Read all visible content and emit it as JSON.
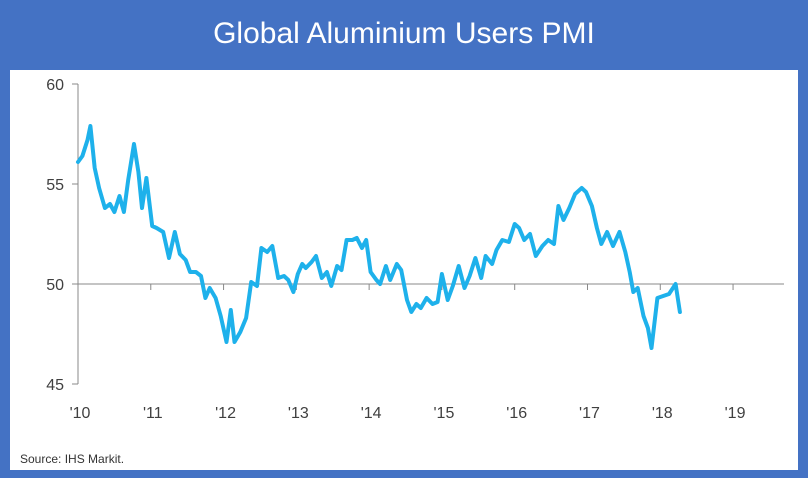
{
  "title": "Global Aluminium Users PMI",
  "source": "Source: IHS Markit.",
  "colors": {
    "line": "#1eb1eb",
    "frame": "#4472c4",
    "axis": "#888888"
  },
  "chart_data": {
    "type": "line",
    "title": "Global Aluminium Users PMI",
    "xlabel": "",
    "ylabel": "",
    "ylim": [
      45,
      60
    ],
    "xlim": [
      2010.0,
      2019.7
    ],
    "y_ticks": [
      45,
      50,
      55,
      60
    ],
    "x_ticks": [
      {
        "label": "'10",
        "value": 2010
      },
      {
        "label": "'11",
        "value": 2011
      },
      {
        "label": "'12",
        "value": 2012
      },
      {
        "label": "'13",
        "value": 2013
      },
      {
        "label": "'14",
        "value": 2014
      },
      {
        "label": "'15",
        "value": 2015
      },
      {
        "label": "'16",
        "value": 2016
      },
      {
        "label": "'17",
        "value": 2017
      },
      {
        "label": "'18",
        "value": 2018
      },
      {
        "label": "'19",
        "value": 2019
      }
    ],
    "reference_line": 50,
    "series": [
      {
        "values": [
          [
            2010.0,
            56.1
          ],
          [
            2010.06,
            56.4
          ],
          [
            2010.13,
            57.2
          ],
          [
            2010.17,
            57.9
          ],
          [
            2010.23,
            55.8
          ],
          [
            2010.29,
            54.8
          ],
          [
            2010.37,
            53.8
          ],
          [
            2010.44,
            54.0
          ],
          [
            2010.5,
            53.6
          ],
          [
            2010.57,
            54.4
          ],
          [
            2010.63,
            53.6
          ],
          [
            2010.69,
            55.2
          ],
          [
            2010.77,
            57.0
          ],
          [
            2010.83,
            55.6
          ],
          [
            2010.88,
            53.8
          ],
          [
            2010.94,
            55.3
          ],
          [
            2011.02,
            52.9
          ],
          [
            2011.08,
            52.8
          ],
          [
            2011.17,
            52.6
          ],
          [
            2011.25,
            51.3
          ],
          [
            2011.33,
            52.6
          ],
          [
            2011.4,
            51.5
          ],
          [
            2011.48,
            51.2
          ],
          [
            2011.54,
            50.6
          ],
          [
            2011.62,
            50.6
          ],
          [
            2011.69,
            50.4
          ],
          [
            2011.75,
            49.3
          ],
          [
            2011.81,
            49.8
          ],
          [
            2011.89,
            49.3
          ],
          [
            2011.96,
            48.4
          ],
          [
            2012.04,
            47.1
          ],
          [
            2012.1,
            48.7
          ],
          [
            2012.15,
            47.1
          ],
          [
            2012.23,
            47.6
          ],
          [
            2012.31,
            48.3
          ],
          [
            2012.38,
            50.1
          ],
          [
            2012.46,
            49.9
          ],
          [
            2012.52,
            51.8
          ],
          [
            2012.6,
            51.6
          ],
          [
            2012.67,
            51.9
          ],
          [
            2012.75,
            50.3
          ],
          [
            2012.83,
            50.4
          ],
          [
            2012.89,
            50.2
          ],
          [
            2012.96,
            49.6
          ],
          [
            2013.02,
            50.5
          ],
          [
            2013.08,
            51.0
          ],
          [
            2013.13,
            50.8
          ],
          [
            2013.21,
            51.1
          ],
          [
            2013.27,
            51.4
          ],
          [
            2013.35,
            50.3
          ],
          [
            2013.42,
            50.6
          ],
          [
            2013.48,
            49.9
          ],
          [
            2013.56,
            50.9
          ],
          [
            2013.62,
            50.7
          ],
          [
            2013.69,
            52.2
          ],
          [
            2013.77,
            52.2
          ],
          [
            2013.83,
            52.3
          ],
          [
            2013.9,
            51.8
          ],
          [
            2013.96,
            52.2
          ],
          [
            2014.02,
            50.6
          ],
          [
            2014.1,
            50.2
          ],
          [
            2014.15,
            50.0
          ],
          [
            2014.23,
            50.9
          ],
          [
            2014.29,
            50.2
          ],
          [
            2014.38,
            51.0
          ],
          [
            2014.44,
            50.7
          ],
          [
            2014.52,
            49.2
          ],
          [
            2014.58,
            48.6
          ],
          [
            2014.65,
            49.0
          ],
          [
            2014.71,
            48.8
          ],
          [
            2014.79,
            49.3
          ],
          [
            2014.87,
            49.0
          ],
          [
            2014.94,
            49.1
          ],
          [
            2015.0,
            50.5
          ],
          [
            2015.08,
            49.2
          ],
          [
            2015.15,
            49.9
          ],
          [
            2015.23,
            50.9
          ],
          [
            2015.31,
            49.8
          ],
          [
            2015.38,
            50.4
          ],
          [
            2015.46,
            51.3
          ],
          [
            2015.54,
            50.3
          ],
          [
            2015.6,
            51.4
          ],
          [
            2015.69,
            51.0
          ],
          [
            2015.75,
            51.7
          ],
          [
            2015.83,
            52.2
          ],
          [
            2015.92,
            52.1
          ],
          [
            2016.0,
            53.0
          ],
          [
            2016.06,
            52.8
          ],
          [
            2016.13,
            52.2
          ],
          [
            2016.21,
            52.5
          ],
          [
            2016.29,
            51.4
          ],
          [
            2016.38,
            51.9
          ],
          [
            2016.46,
            52.2
          ],
          [
            2016.54,
            52.0
          ],
          [
            2016.6,
            53.9
          ],
          [
            2016.67,
            53.2
          ],
          [
            2016.75,
            53.8
          ],
          [
            2016.83,
            54.5
          ],
          [
            2016.92,
            54.8
          ],
          [
            2016.98,
            54.6
          ],
          [
            2017.06,
            53.9
          ],
          [
            2017.13,
            52.8
          ],
          [
            2017.19,
            52.0
          ],
          [
            2017.27,
            52.6
          ],
          [
            2017.35,
            51.9
          ],
          [
            2017.44,
            52.6
          ],
          [
            2017.52,
            51.6
          ],
          [
            2017.58,
            50.6
          ],
          [
            2017.63,
            49.6
          ],
          [
            2017.69,
            49.8
          ],
          [
            2017.77,
            48.4
          ],
          [
            2017.83,
            47.8
          ],
          [
            2017.88,
            46.8
          ],
          [
            2017.96,
            49.3
          ],
          [
            2018.04,
            49.4
          ],
          [
            2018.12,
            49.5
          ],
          [
            2018.21,
            50.0
          ],
          [
            2018.27,
            48.6
          ]
        ]
      }
    ]
  }
}
